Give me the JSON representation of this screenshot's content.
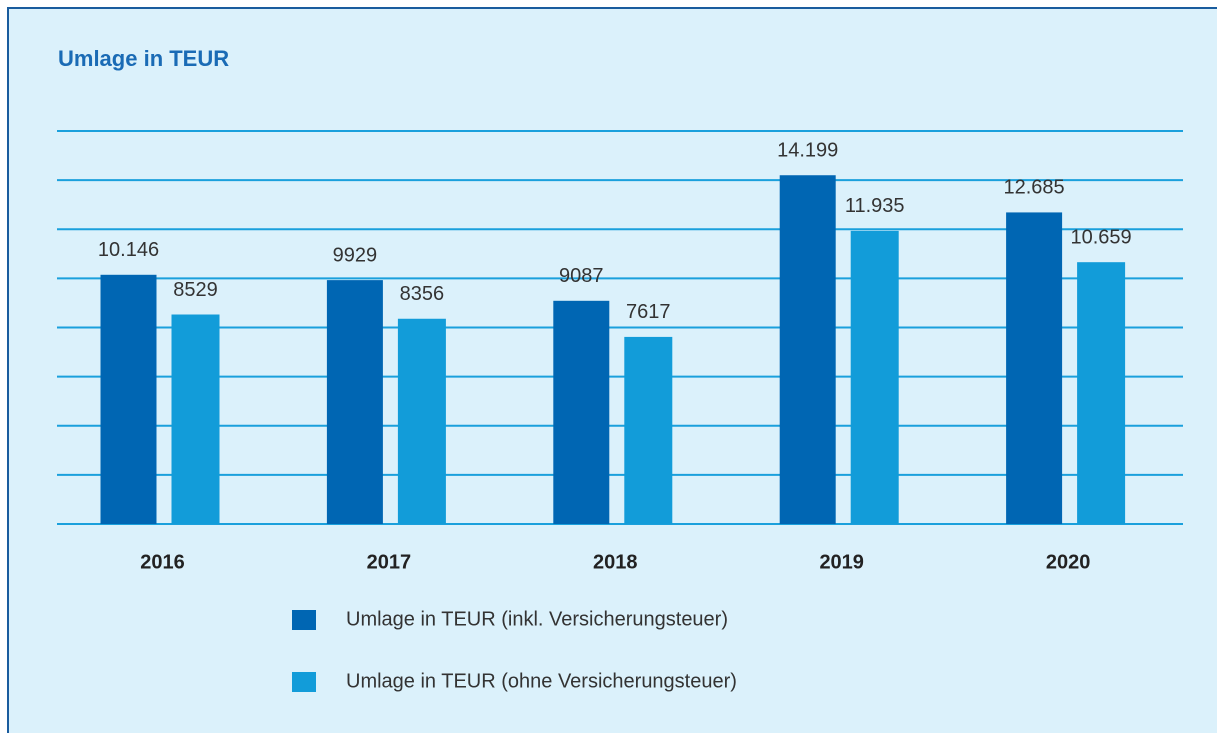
{
  "chart_data": {
    "type": "bar",
    "title": "Umlage in TEUR",
    "categories": [
      "2016",
      "2017",
      "2018",
      "2019",
      "2020"
    ],
    "series": [
      {
        "name": "Umlage in TEUR (inkl. Versicherungsteuer)",
        "color": "#0066b3",
        "values": [
          10146,
          9929,
          9087,
          14199,
          12685
        ],
        "value_labels": [
          "10.146",
          "9929",
          "9087",
          "14.199",
          "12.685"
        ]
      },
      {
        "name": "Umlage in TEUR (ohne Versicherungsteuer)",
        "color": "#129cd9",
        "values": [
          8529,
          8356,
          7617,
          11935,
          10659
        ],
        "value_labels": [
          "8529",
          "8356",
          "7617",
          "11.935",
          "10.659"
        ]
      }
    ],
    "ylim": [
      0,
      16000
    ],
    "yticks": [
      0,
      2000,
      4000,
      6000,
      8000,
      10000,
      12000,
      14000,
      16000
    ],
    "grid": true
  }
}
